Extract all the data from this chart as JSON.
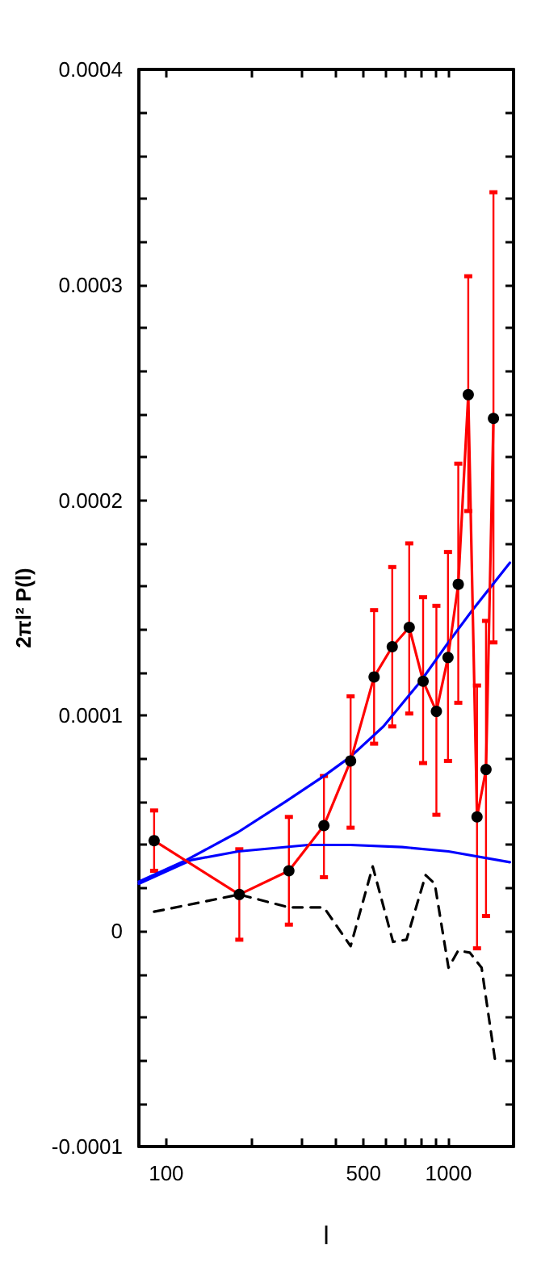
{
  "chart_data": {
    "type": "line",
    "xlabel": "l",
    "ylabel": "2πl² P(l)",
    "log": "x",
    "grid": false,
    "xlim": [
      80,
      1700
    ],
    "xticks": [
      100,
      {
        "value": 200,
        "label": null
      },
      {
        "value": 300,
        "label": null
      },
      {
        "value": 400,
        "label": null
      },
      500,
      {
        "value": 600,
        "label": null
      },
      {
        "value": 700,
        "label": null
      },
      {
        "value": 800,
        "label": null
      },
      {
        "value": 900,
        "label": null
      },
      1000
    ],
    "ylim": [
      -0.0001,
      0.0004
    ],
    "yticks": [
      -0.0001,
      {
        "value": -8e-05,
        "label": null
      },
      {
        "value": -6e-05,
        "label": null
      },
      {
        "value": -4e-05,
        "label": null
      },
      {
        "value": -2e-05,
        "label": null
      },
      0,
      {
        "value": 2e-05,
        "label": null
      },
      {
        "value": 4e-05,
        "label": null
      },
      {
        "value": 6e-05,
        "label": null
      },
      {
        "value": 8e-05,
        "label": null
      },
      0.0001,
      {
        "value": 0.00012,
        "label": null
      },
      {
        "value": 0.00014,
        "label": null
      },
      {
        "value": 0.00016,
        "label": null
      },
      {
        "value": 0.00018,
        "label": null
      },
      0.0002,
      {
        "value": 0.00022,
        "label": null
      },
      {
        "value": 0.00024,
        "label": null
      },
      {
        "value": 0.00026,
        "label": null
      },
      {
        "value": 0.00028,
        "label": null
      },
      0.0003,
      {
        "value": 0.00032,
        "label": null
      },
      {
        "value": 0.00034,
        "label": null
      },
      {
        "value": 0.00036,
        "label": null
      },
      {
        "value": 0.00038,
        "label": null
      },
      0.0004
    ],
    "series": [
      {
        "color": "#0000ff",
        "line_style": "solid",
        "marker": "none",
        "x": [
          80,
          118,
          180,
          264,
          362,
          450,
          588,
          797,
          986,
          1215,
          1650
        ],
        "values": [
          2.3e-05,
          3.3e-05,
          4.6e-05,
          6e-05,
          7.2e-05,
          8.1e-05,
          9.5e-05,
          0.000116,
          0.000133,
          0.000149,
          0.000171
        ]
      },
      {
        "color": "#0000ff",
        "line_style": "solid",
        "marker": "none",
        "x": [
          80,
          123,
          180,
          319,
          450,
          685,
          1000,
          1650
        ],
        "values": [
          2.2e-05,
          3.3e-05,
          3.7e-05,
          4e-05,
          4e-05,
          3.9e-05,
          3.7e-05,
          3.2e-05
        ]
      },
      {
        "color": "#000000",
        "line_style": "dashed",
        "marker": "none",
        "x": [
          90.6,
          181.5,
          272,
          362,
          450,
          539,
          636,
          710,
          830,
          894,
          1000,
          1083,
          1190,
          1310,
          1470
        ],
        "values": [
          9e-06,
          1.7e-05,
          1.1e-05,
          1.1e-05,
          -7e-06,
          3e-05,
          -5e-06,
          -4e-06,
          2.6e-05,
          2.2e-05,
          -1.7e-05,
          -9e-06,
          -1e-05,
          -1.7e-05,
          -6.2e-05
        ]
      },
      {
        "color": "#ff0000",
        "line_style": "solid",
        "marker": "circle",
        "x": [
          90.6,
          181.5,
          272,
          362,
          450,
          545,
          632,
          726,
          813,
          906,
          996,
          1083,
          1175,
          1262,
          1358,
          1443
        ],
        "values": [
          4.2e-05,
          1.7e-05,
          2.8e-05,
          4.9e-05,
          7.9e-05,
          0.000118,
          0.000132,
          0.000141,
          0.000116,
          0.000102,
          0.000127,
          0.000161,
          0.000249,
          5.3e-05,
          7.5e-05,
          0.000238
        ],
        "errors": [
          [
            2.8e-05,
            5.6e-05
          ],
          [
            -4e-06,
            3.8e-05
          ],
          [
            3e-06,
            5.3e-05
          ],
          [
            2.5e-05,
            7.2e-05
          ],
          [
            4.8e-05,
            0.000109
          ],
          [
            8.7e-05,
            0.000149
          ],
          [
            9.5e-05,
            0.000169
          ],
          [
            0.000101,
            0.00018
          ],
          [
            7.8e-05,
            0.000155
          ],
          [
            5.4e-05,
            0.000151
          ],
          [
            7.9e-05,
            0.000176
          ],
          [
            0.000106,
            0.000217
          ],
          [
            0.000195,
            0.000304
          ],
          [
            -8e-06,
            0.000114
          ],
          [
            7e-06,
            0.000144
          ],
          [
            0.000134,
            0.000343
          ]
        ]
      }
    ]
  }
}
